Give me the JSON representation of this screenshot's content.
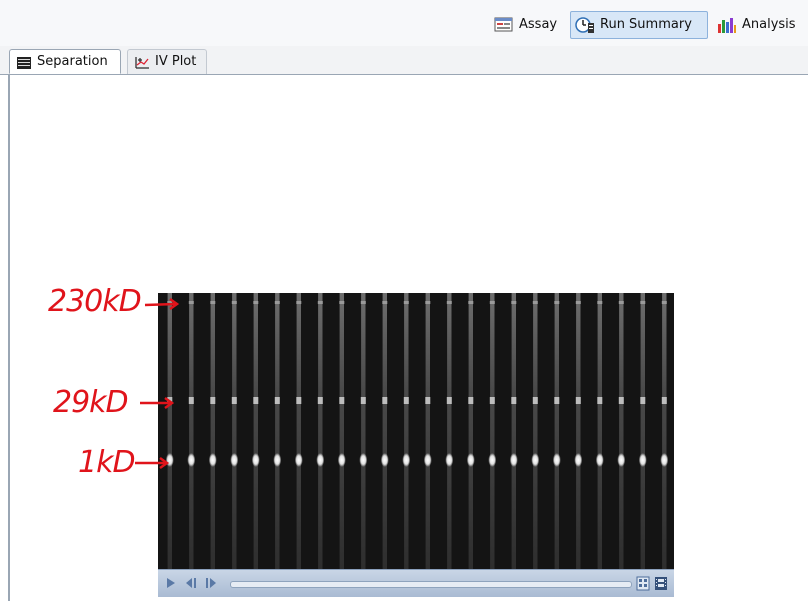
{
  "toolbar": {
    "buttons": [
      {
        "label": "Assay",
        "icon": "assay-icon",
        "active": false
      },
      {
        "label": "Run Summary",
        "icon": "run-summary-icon",
        "active": true
      },
      {
        "label": "Analysis",
        "icon": "analysis-icon",
        "active": false
      }
    ]
  },
  "tabs": [
    {
      "label": "Separation",
      "icon": "separation-icon",
      "selected": true
    },
    {
      "label": "IV Plot",
      "icon": "iv-plot-icon",
      "selected": false
    }
  ],
  "annotations": {
    "marker_230": "230kD",
    "marker_29": "29kD",
    "marker_1": "1kD"
  },
  "colors": {
    "annotation": "#e0141b",
    "active_button_bg": "#d8e7f7",
    "gel_background": "#141414"
  },
  "gel": {
    "lane_count": 24
  }
}
